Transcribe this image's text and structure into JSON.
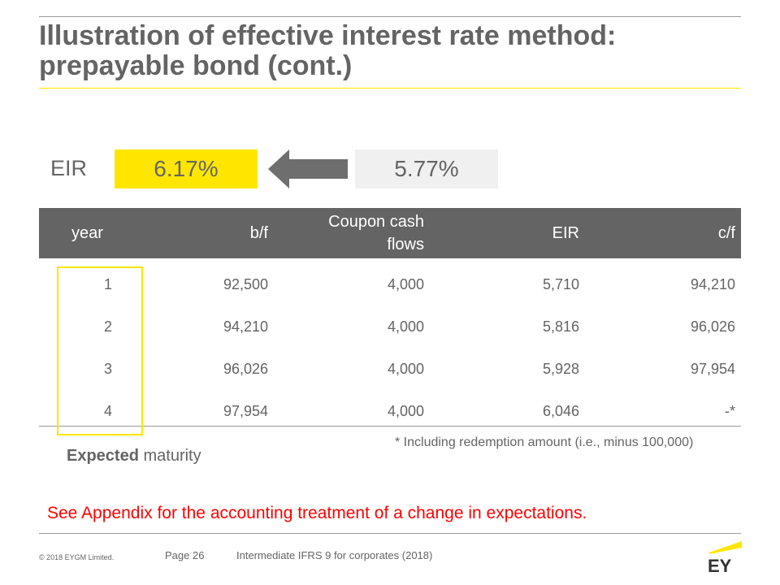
{
  "slide": {
    "title_line1": "Illustration of effective interest rate method:",
    "title_line2": "prepayable bond (cont.)"
  },
  "eir": {
    "label": "EIR",
    "new_rate": "6.17%",
    "old_rate": "5.77%",
    "arrow_icon": "left-arrow-icon"
  },
  "table": {
    "headers": [
      "year",
      "b/f",
      "Coupon cash flows",
      "EIR",
      "c/f"
    ],
    "rows": [
      [
        "1",
        "92,500",
        "4,000",
        "5,710",
        "94,210"
      ],
      [
        "2",
        "94,210",
        "4,000",
        "5,816",
        "96,026"
      ],
      [
        "3",
        "96,026",
        "4,000",
        "5,928",
        "97,954"
      ],
      [
        "4",
        "97,954",
        "4,000",
        "6,046",
        "-*"
      ]
    ]
  },
  "notes": {
    "expected_bold": "Expected",
    "expected_rest": " maturity",
    "footnote": "* Including redemption amount (i.e., minus 100,000)",
    "appendix": "See Appendix for the accounting treatment of a change in expectations."
  },
  "footer": {
    "copyright": "© 2018 EYGM Limited.",
    "page": "Page 26",
    "course": "Intermediate IFRS 9 for corporates (2018)",
    "logo_text": "EY"
  },
  "colors": {
    "ey_yellow": "#ffe600",
    "text_gray": "#646464",
    "header_gray": "#646464",
    "note_red": "#ff0000"
  }
}
